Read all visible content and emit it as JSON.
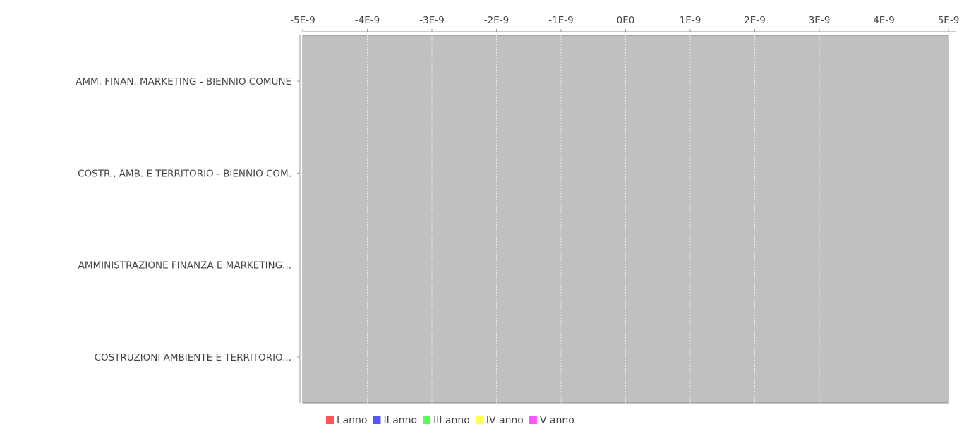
{
  "chart_data": {
    "type": "bar",
    "orientation": "horizontal",
    "categories": [
      "AMM. FINAN. MARKETING - BIENNIO COMUNE",
      "COSTR., AMB. E TERRITORIO - BIENNIO COM.",
      "AMMINISTRAZIONE FINANZA E MARKETING...",
      "COSTRUZIONI AMBIENTE E TERRITORIO..."
    ],
    "x_ticks": [
      "-5E-9",
      "-4E-9",
      "-3E-9",
      "-2E-9",
      "-1E-9",
      "0E0",
      "1E-9",
      "2E-9",
      "3E-9",
      "4E-9",
      "5E-9"
    ],
    "xlim": [
      -5e-09,
      5e-09
    ],
    "series": [
      {
        "name": "I anno",
        "color": "#ff5555",
        "values": [
          0,
          0,
          0,
          0
        ]
      },
      {
        "name": "II anno",
        "color": "#5555ff",
        "values": [
          0,
          0,
          0,
          0
        ]
      },
      {
        "name": "III anno",
        "color": "#55ff55",
        "values": [
          0,
          0,
          0,
          0
        ]
      },
      {
        "name": "IV anno",
        "color": "#ffff55",
        "values": [
          0,
          0,
          0,
          0
        ]
      },
      {
        "name": "V anno",
        "color": "#ff55ff",
        "values": [
          0,
          0,
          0,
          0
        ]
      }
    ],
    "x_axis_position": "top",
    "grid": true,
    "legend_position": "bottom",
    "plot_background": "#c0c0c0"
  }
}
